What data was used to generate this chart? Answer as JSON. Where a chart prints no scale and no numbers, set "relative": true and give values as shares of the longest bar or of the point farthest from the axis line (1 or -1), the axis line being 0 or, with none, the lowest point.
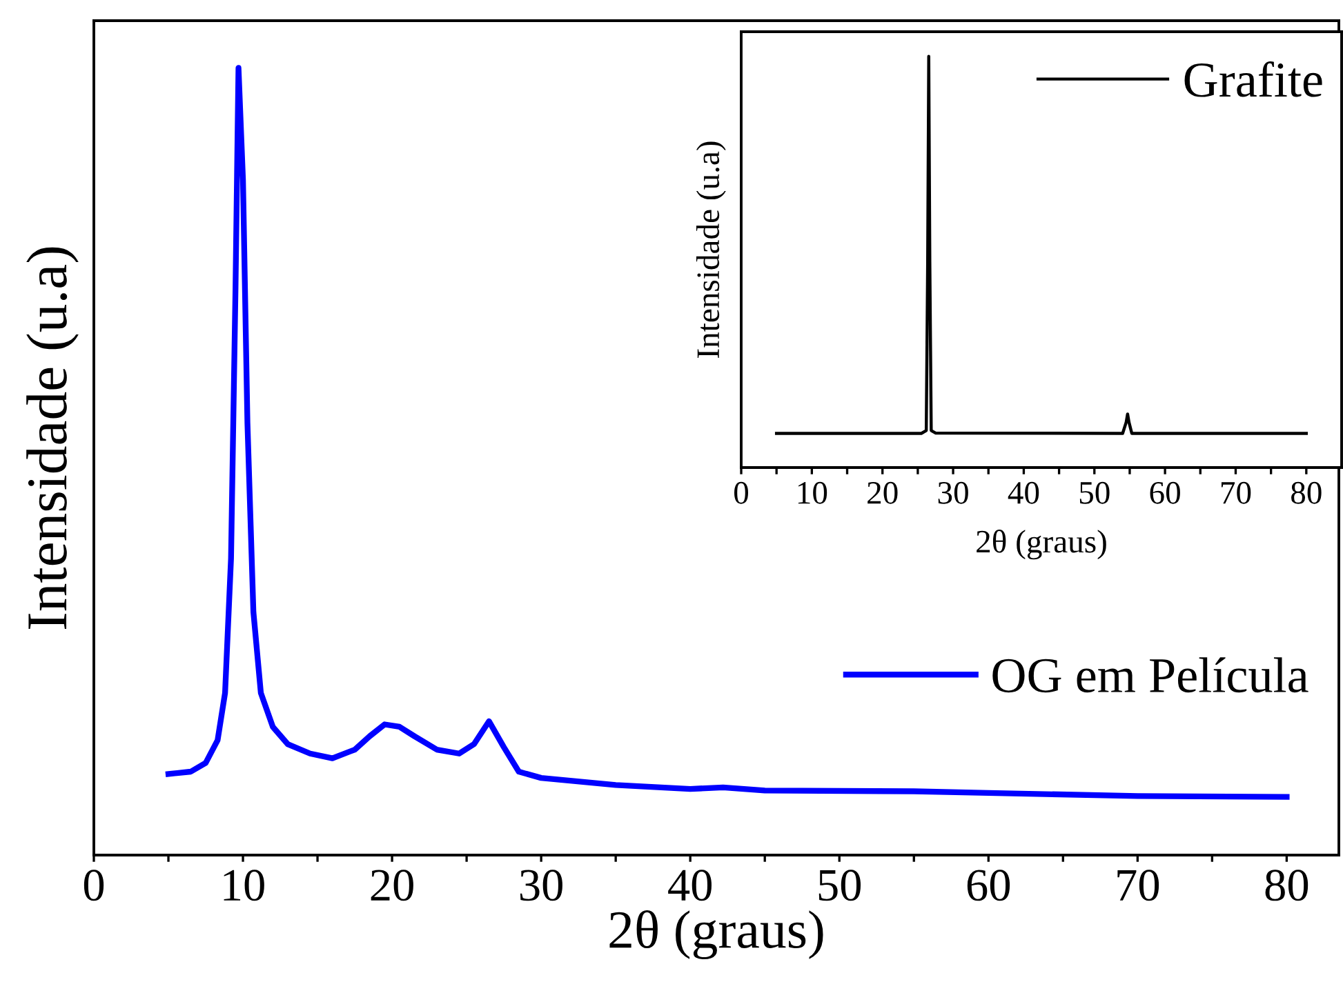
{
  "chart_data": [
    {
      "type": "line",
      "relative": true,
      "xlabel": "2θ (graus)",
      "ylabel": "Intensidade (u.a)",
      "xlim": [
        0,
        83.5
      ],
      "xticks": [
        0,
        {
          "value": 5,
          "label": null
        },
        10,
        {
          "value": 15,
          "label": null
        },
        20,
        {
          "value": 25,
          "label": null
        },
        30,
        {
          "value": 35,
          "label": null
        },
        40,
        {
          "value": 45,
          "label": null
        },
        50,
        {
          "value": 55,
          "label": null
        },
        60,
        {
          "value": 65,
          "label": null
        },
        70,
        {
          "value": 75,
          "label": null
        },
        80
      ],
      "tick_labels": "x",
      "legend": "right",
      "grid": false,
      "series": [
        {
          "name": "OG em Película",
          "color": "#0000ff",
          "x": [
            5,
            6.5,
            7.5,
            8.3,
            8.8,
            9.2,
            9.5,
            9.7,
            10.0,
            10.3,
            10.7,
            11.2,
            12,
            13,
            14.5,
            16,
            17.5,
            18.5,
            19.5,
            20.5,
            21.5,
            23,
            24.5,
            25.5,
            26.5,
            27.5,
            28.5,
            30,
            35,
            40,
            42.2,
            45,
            55,
            60,
            70,
            80
          ],
          "values": [
            0.103,
            0.106,
            0.117,
            0.146,
            0.206,
            0.377,
            0.72,
            1.0,
            0.858,
            0.549,
            0.309,
            0.206,
            0.163,
            0.141,
            0.129,
            0.123,
            0.134,
            0.151,
            0.166,
            0.163,
            0.151,
            0.134,
            0.129,
            0.141,
            0.17,
            0.137,
            0.106,
            0.098,
            0.089,
            0.084,
            0.086,
            0.082,
            0.081,
            0.079,
            0.075,
            0.074
          ]
        }
      ]
    },
    {
      "type": "line",
      "relative": true,
      "xlabel": "2θ (graus)",
      "ylabel": "Intensidade (u.a)",
      "xlim": [
        0,
        85
      ],
      "xticks": [
        0,
        {
          "value": 5,
          "label": null
        },
        10,
        {
          "value": 15,
          "label": null
        },
        20,
        {
          "value": 25,
          "label": null
        },
        30,
        {
          "value": 35,
          "label": null
        },
        40,
        {
          "value": 45,
          "label": null
        },
        50,
        {
          "value": 55,
          "label": null
        },
        60,
        {
          "value": 65,
          "label": null
        },
        70,
        {
          "value": 75,
          "label": null
        },
        80
      ],
      "tick_labels": "x",
      "legend": "top right",
      "grid": false,
      "series": [
        {
          "name": "Grafite",
          "color": "#000000",
          "x": [
            5,
            25.5,
            26.2,
            26.4,
            26.55,
            26.7,
            26.9,
            27.5,
            54,
            54.5,
            54.7,
            54.9,
            55.3,
            80
          ],
          "values": [
            0.083,
            0.083,
            0.09,
            0.5,
            1.0,
            0.5,
            0.09,
            0.084,
            0.083,
            0.11,
            0.13,
            0.11,
            0.083,
            0.083
          ]
        }
      ]
    }
  ]
}
